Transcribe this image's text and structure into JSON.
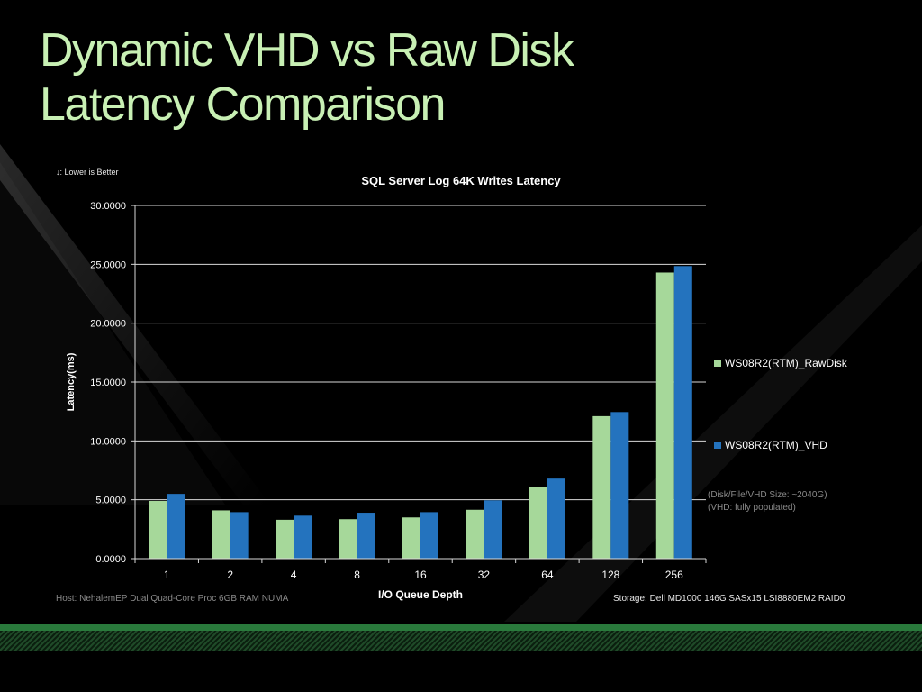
{
  "slide": {
    "title_line1": "Dynamic VHD vs Raw Disk",
    "title_line2": "Latency Comparison"
  },
  "notes": {
    "lower_is_better": "↓: Lower is Better",
    "host": "Host: NehalemEP Dual Quad-Core Proc 6GB RAM NUMA",
    "storage": "Storage: Dell MD1000 146G SASx15 LSI8880EM2 RAID0",
    "size_note_line1": "(Disk/File/VHD Size: ~2040G)",
    "size_note_line2": "(VHD: fully populated)"
  },
  "colors": {
    "title": "#c8f0b4",
    "rawdisk": "#a6d89a",
    "vhd": "#2473be",
    "grid": "#d9d9d9",
    "text": "#ffffff"
  },
  "chart_data": {
    "type": "bar",
    "title": "SQL Server Log 64K Writes Latency",
    "xlabel": "I/O Queue Depth",
    "ylabel": "Latency(ms)",
    "ylim": [
      0,
      30
    ],
    "yticks": [
      "0.0000",
      "5.0000",
      "10.0000",
      "15.0000",
      "20.0000",
      "25.0000",
      "30.0000"
    ],
    "grid": true,
    "legend_position": "right",
    "categories": [
      "1",
      "2",
      "4",
      "8",
      "16",
      "32",
      "64",
      "128",
      "256"
    ],
    "series": [
      {
        "name": "WS08R2(RTM)_RawDisk",
        "values": [
          4.9,
          4.1,
          3.3,
          3.35,
          3.5,
          4.15,
          6.1,
          12.1,
          24.3
        ]
      },
      {
        "name": "WS08R2(RTM)_VHD",
        "values": [
          5.5,
          3.95,
          3.65,
          3.9,
          3.95,
          4.95,
          6.8,
          12.45,
          24.85
        ]
      }
    ]
  }
}
